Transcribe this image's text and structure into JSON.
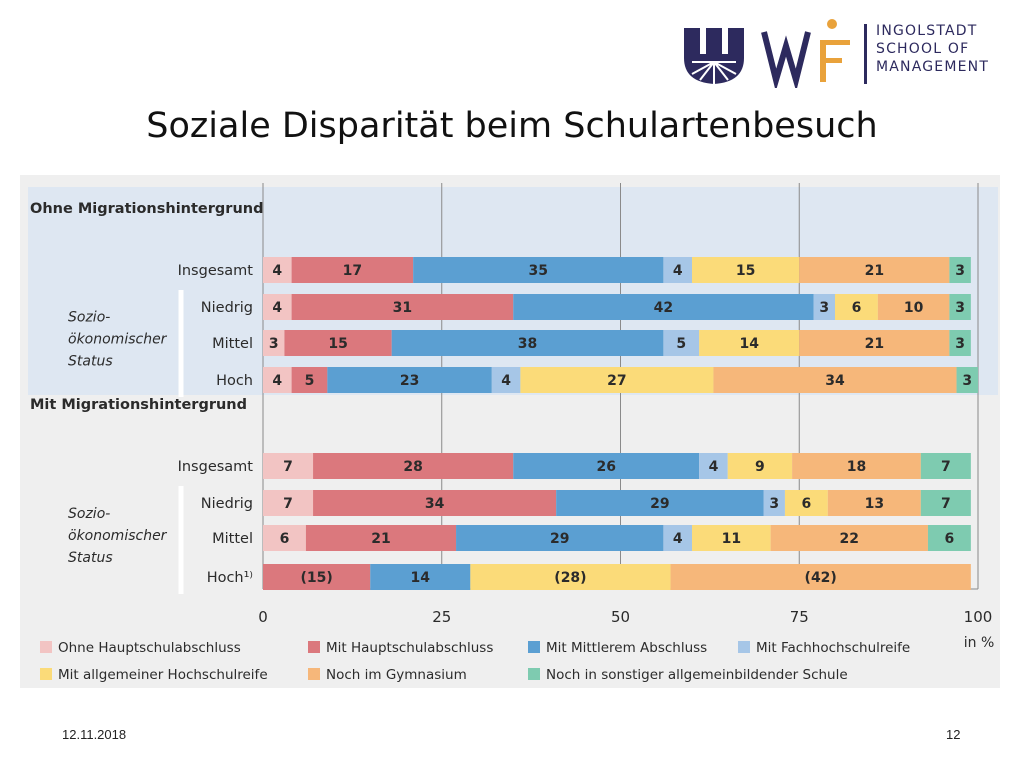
{
  "slide": {
    "title": "Soziale Disparität beim Schulartenbesuch",
    "date": "12.11.2018",
    "page": "12"
  },
  "logo": {
    "lines": [
      "INGOLSTADT",
      "SCHOOL OF",
      "MANAGEMENT"
    ],
    "colors": {
      "navy": "#2d2a5e",
      "gold": "#e9a23b"
    }
  },
  "chart_data": {
    "type": "bar",
    "orientation": "horizontal-stacked-100",
    "xlim": [
      0,
      100
    ],
    "x_ticks": [
      "0",
      "25",
      "50",
      "75",
      "100"
    ],
    "x_unit": "in %",
    "groups": [
      {
        "title": "Ohne Migrationshintergrund",
        "sublabel": [
          "Sozio-",
          "ökonomischer",
          "Status"
        ],
        "rows": [
          {
            "label": "Insgesamt",
            "values": [
              4,
              17,
              35,
              4,
              15,
              21,
              3
            ],
            "labels": [
              "4",
              "17",
              "35",
              "4",
              "15",
              "21",
              "3"
            ]
          },
          {
            "label": "Niedrig",
            "values": [
              4,
              31,
              42,
              3,
              6,
              10,
              3
            ],
            "labels": [
              "4",
              "31",
              "42",
              "3",
              "6",
              "10",
              "3"
            ]
          },
          {
            "label": "Mittel",
            "values": [
              3,
              15,
              38,
              5,
              14,
              21,
              3
            ],
            "labels": [
              "3",
              "15",
              "38",
              "5",
              "14",
              "21",
              "3"
            ]
          },
          {
            "label": "Hoch",
            "values": [
              4,
              5,
              23,
              4,
              27,
              34,
              3
            ],
            "labels": [
              "4",
              "5",
              "23",
              "4",
              "27",
              "34",
              "3"
            ]
          }
        ]
      },
      {
        "title": "Mit Migrationshintergrund",
        "sublabel": [
          "Sozio-",
          "ökonomischer",
          "Status"
        ],
        "rows": [
          {
            "label": "Insgesamt",
            "values": [
              7,
              28,
              26,
              4,
              9,
              18,
              7
            ],
            "labels": [
              "7",
              "28",
              "26",
              "4",
              "9",
              "18",
              "7"
            ]
          },
          {
            "label": "Niedrig",
            "values": [
              7,
              34,
              29,
              3,
              6,
              13,
              7
            ],
            "labels": [
              "7",
              "34",
              "29",
              "3",
              "6",
              "13",
              "7"
            ]
          },
          {
            "label": "Mittel",
            "values": [
              6,
              21,
              29,
              4,
              11,
              22,
              6
            ],
            "labels": [
              "6",
              "21",
              "29",
              "4",
              "11",
              "22",
              "6"
            ]
          },
          {
            "label": "Hoch¹⁾",
            "values": [
              0,
              15,
              14,
              0,
              28,
              42,
              0
            ],
            "labels": [
              "",
              "(15)",
              "14",
              "",
              "(28)",
              "(42)",
              ""
            ]
          }
        ]
      }
    ],
    "series": [
      {
        "name": "Ohne Hauptschulabschluss",
        "color": "#f2c4c3"
      },
      {
        "name": "Mit Hauptschulabschluss",
        "color": "#db787d"
      },
      {
        "name": "Mit Mittlerem Abschluss",
        "color": "#5b9fd2"
      },
      {
        "name": "Mit Fachhochschulreife",
        "color": "#a6c6e7"
      },
      {
        "name": "Mit allgemeiner Hochschulreife",
        "color": "#fbdb79"
      },
      {
        "name": "Noch im Gymnasium",
        "color": "#f6b77a"
      },
      {
        "name": "Noch in sonstiger allgemeinbildender Schule",
        "color": "#7ecbb0"
      }
    ],
    "legend_position": "bottom",
    "grid": true,
    "colors": {
      "panel": "#efefef",
      "top_group_bg": "#dee7f2"
    }
  }
}
